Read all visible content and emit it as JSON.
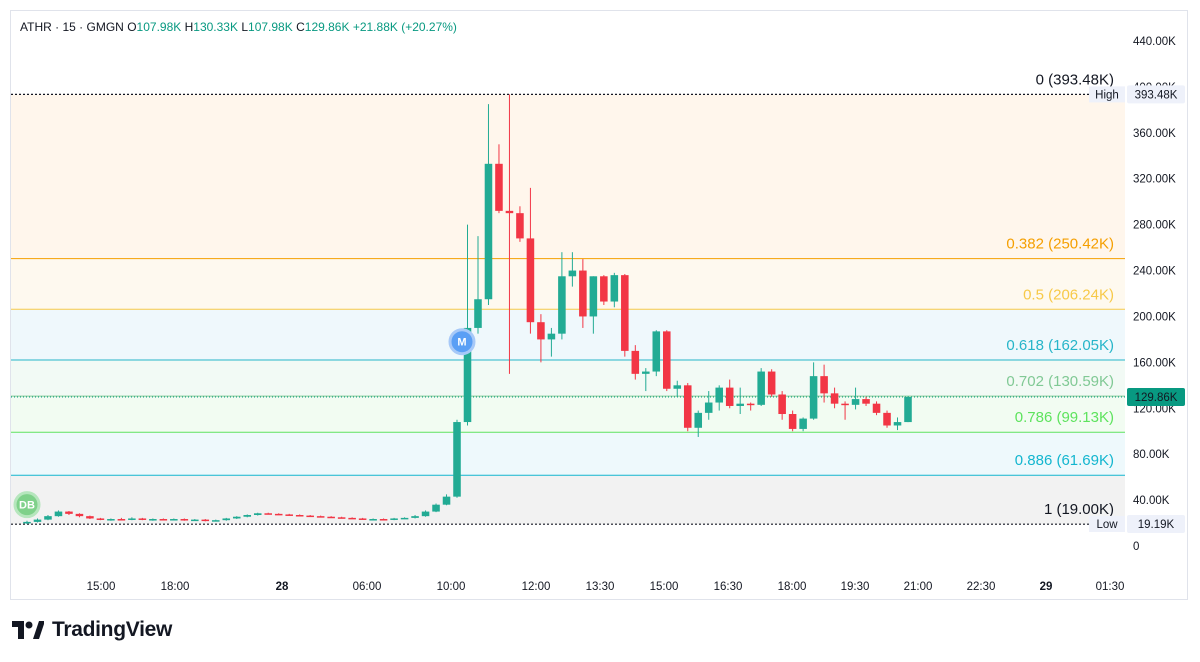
{
  "header": {
    "symbol": "ATHR",
    "sep1": "·",
    "interval": "15",
    "sep2": "·",
    "exchange": "GMGN",
    "open_label": "O",
    "open": "107.98K",
    "high_label": "H",
    "high": "130.33K",
    "low_label": "L",
    "low": "107.98K",
    "close_label": "C",
    "close": "129.86K",
    "change": "+21.88K (+20.27%)"
  },
  "brand": {
    "name": "TradingView"
  },
  "colors": {
    "up": "#22ab94",
    "down": "#f23645",
    "accent": "#2962ff"
  },
  "chart_data": {
    "type": "candlestick",
    "y_axis": {
      "ticks": [
        0,
        40000,
        80000,
        120000,
        160000,
        200000,
        240000,
        280000,
        320000,
        360000,
        400000,
        440000
      ],
      "tick_labels": [
        "0",
        "40.00K",
        "80.00K",
        "120.00K",
        "160.00K",
        "200.00K",
        "240.00K",
        "280.00K",
        "320.00K",
        "360.00K",
        "400.00K",
        "440.00K"
      ]
    },
    "x_axis": {
      "tick_labels": [
        "15:00",
        "18:00",
        "28",
        "06:00",
        "10:00",
        "12:00",
        "13:30",
        "15:00",
        "16:30",
        "18:00",
        "19:30",
        "21:00",
        "22:30",
        "29",
        "01:30"
      ]
    },
    "fibonacci": [
      {
        "level": "0",
        "price": 393480,
        "label": "0 (393.48K)",
        "color": "#131722"
      },
      {
        "level": "0.382",
        "price": 250420,
        "label": "0.382 (250.42K)",
        "color": "#f59f00"
      },
      {
        "level": "0.5",
        "price": 206240,
        "label": "0.5 (206.24K)",
        "color": "#f7c948"
      },
      {
        "level": "0.618",
        "price": 162050,
        "label": "0.618 (162.05K)",
        "color": "#26b5c9"
      },
      {
        "level": "0.702",
        "price": 130590,
        "label": "0.702 (130.59K)",
        "color": "#81c995"
      },
      {
        "level": "0.786",
        "price": 99130,
        "label": "0.786 (99.13K)",
        "color": "#5ee35e"
      },
      {
        "level": "0.886",
        "price": 61690,
        "label": "0.886 (61.69K)",
        "color": "#13b6cf"
      },
      {
        "level": "1",
        "price": 19000,
        "label": "1 (19.00K)",
        "color": "#131722"
      }
    ],
    "price_tags": [
      {
        "name": "High",
        "price": 393480,
        "value_label": "393.48K"
      },
      {
        "name": "Low",
        "price": 19190,
        "value_label": "19.19K"
      },
      {
        "name": "",
        "price": 129860,
        "value_label": "129.86K"
      }
    ],
    "markers": [
      {
        "label": "DB",
        "price": 36000
      },
      {
        "label": "M",
        "price": 178000
      }
    ],
    "candles": [
      {
        "o": 20000,
        "h": 22000,
        "l": 19190,
        "c": 21000
      },
      {
        "o": 21000,
        "h": 24000,
        "l": 20500,
        "c": 23000
      },
      {
        "o": 23000,
        "h": 27000,
        "l": 22500,
        "c": 26000
      },
      {
        "o": 26000,
        "h": 31000,
        "l": 25500,
        "c": 30000
      },
      {
        "o": 30000,
        "h": 30500,
        "l": 27000,
        "c": 28000
      },
      {
        "o": 28000,
        "h": 28500,
        "l": 25000,
        "c": 26000
      },
      {
        "o": 26000,
        "h": 26500,
        "l": 23500,
        "c": 24000
      },
      {
        "o": 24000,
        "h": 24500,
        "l": 22500,
        "c": 23000
      },
      {
        "o": 23000,
        "h": 24000,
        "l": 22000,
        "c": 23500
      },
      {
        "o": 23500,
        "h": 24500,
        "l": 22500,
        "c": 23000
      },
      {
        "o": 23000,
        "h": 25000,
        "l": 22500,
        "c": 24000
      },
      {
        "o": 24000,
        "h": 24500,
        "l": 22500,
        "c": 23000
      },
      {
        "o": 23000,
        "h": 24000,
        "l": 22000,
        "c": 23500
      },
      {
        "o": 23500,
        "h": 24000,
        "l": 22500,
        "c": 23000
      },
      {
        "o": 23000,
        "h": 24000,
        "l": 22500,
        "c": 23500
      },
      {
        "o": 23500,
        "h": 24000,
        "l": 22000,
        "c": 22500
      },
      {
        "o": 22500,
        "h": 23500,
        "l": 22000,
        "c": 23000
      },
      {
        "o": 23000,
        "h": 23500,
        "l": 21500,
        "c": 22000
      },
      {
        "o": 22000,
        "h": 23000,
        "l": 21500,
        "c": 22500
      },
      {
        "o": 22500,
        "h": 24500,
        "l": 22000,
        "c": 24000
      },
      {
        "o": 24000,
        "h": 26000,
        "l": 23500,
        "c": 25500
      },
      {
        "o": 25500,
        "h": 27500,
        "l": 25000,
        "c": 27000
      },
      {
        "o": 27000,
        "h": 29000,
        "l": 26500,
        "c": 28500
      },
      {
        "o": 28500,
        "h": 29000,
        "l": 27500,
        "c": 28000
      },
      {
        "o": 28000,
        "h": 28500,
        "l": 27000,
        "c": 27500
      },
      {
        "o": 27500,
        "h": 28000,
        "l": 26500,
        "c": 27000
      },
      {
        "o": 27000,
        "h": 27500,
        "l": 26000,
        "c": 26500
      },
      {
        "o": 26500,
        "h": 27000,
        "l": 25500,
        "c": 26000
      },
      {
        "o": 26000,
        "h": 26500,
        "l": 25000,
        "c": 25500
      },
      {
        "o": 25500,
        "h": 26000,
        "l": 24500,
        "c": 25000
      },
      {
        "o": 25000,
        "h": 25500,
        "l": 24000,
        "c": 24500
      },
      {
        "o": 24500,
        "h": 25000,
        "l": 23500,
        "c": 24000
      },
      {
        "o": 24000,
        "h": 24500,
        "l": 23000,
        "c": 23500
      },
      {
        "o": 23500,
        "h": 24000,
        "l": 23000,
        "c": 23500
      },
      {
        "o": 23500,
        "h": 24000,
        "l": 22500,
        "c": 23000
      },
      {
        "o": 23000,
        "h": 24500,
        "l": 22500,
        "c": 24000
      },
      {
        "o": 24000,
        "h": 25000,
        "l": 23500,
        "c": 24500
      },
      {
        "o": 24500,
        "h": 27000,
        "l": 24000,
        "c": 26000
      },
      {
        "o": 26000,
        "h": 31000,
        "l": 25500,
        "c": 30000
      },
      {
        "o": 30000,
        "h": 37000,
        "l": 29500,
        "c": 36000
      },
      {
        "o": 36000,
        "h": 45000,
        "l": 35500,
        "c": 43000
      },
      {
        "o": 43000,
        "h": 110000,
        "l": 42000,
        "c": 108000
      },
      {
        "o": 108000,
        "h": 280000,
        "l": 105000,
        "c": 190000
      },
      {
        "o": 190000,
        "h": 270000,
        "l": 185000,
        "c": 215000
      },
      {
        "o": 215000,
        "h": 385000,
        "l": 210000,
        "c": 333000
      },
      {
        "o": 333000,
        "h": 350000,
        "l": 290000,
        "c": 292000
      },
      {
        "o": 292000,
        "h": 393480,
        "l": 150000,
        "c": 290000
      },
      {
        "o": 290000,
        "h": 296000,
        "l": 265000,
        "c": 268000
      },
      {
        "o": 268000,
        "h": 312000,
        "l": 185000,
        "c": 195000
      },
      {
        "o": 195000,
        "h": 202000,
        "l": 160000,
        "c": 180000
      },
      {
        "o": 180000,
        "h": 190000,
        "l": 165000,
        "c": 185000
      },
      {
        "o": 185000,
        "h": 256000,
        "l": 180000,
        "c": 235000
      },
      {
        "o": 235000,
        "h": 256000,
        "l": 226000,
        "c": 240000
      },
      {
        "o": 240000,
        "h": 250000,
        "l": 190000,
        "c": 200000
      },
      {
        "o": 200000,
        "h": 235000,
        "l": 185000,
        "c": 235000
      },
      {
        "o": 235000,
        "h": 236000,
        "l": 210000,
        "c": 213000
      },
      {
        "o": 213000,
        "h": 238000,
        "l": 208000,
        "c": 236000
      },
      {
        "o": 236000,
        "h": 237000,
        "l": 165000,
        "c": 170000
      },
      {
        "o": 170000,
        "h": 175000,
        "l": 145000,
        "c": 150000
      },
      {
        "o": 150000,
        "h": 155000,
        "l": 135000,
        "c": 152000
      },
      {
        "o": 152000,
        "h": 188000,
        "l": 148000,
        "c": 187000
      },
      {
        "o": 187000,
        "h": 188000,
        "l": 135000,
        "c": 137000
      },
      {
        "o": 137000,
        "h": 144000,
        "l": 130000,
        "c": 140000
      },
      {
        "o": 140000,
        "h": 142000,
        "l": 100000,
        "c": 103000
      },
      {
        "o": 103000,
        "h": 118000,
        "l": 95000,
        "c": 116000
      },
      {
        "o": 116000,
        "h": 135000,
        "l": 110000,
        "c": 125000
      },
      {
        "o": 125000,
        "h": 140000,
        "l": 118000,
        "c": 138000
      },
      {
        "o": 138000,
        "h": 145000,
        "l": 120000,
        "c": 122000
      },
      {
        "o": 122000,
        "h": 138000,
        "l": 115000,
        "c": 124000
      },
      {
        "o": 124000,
        "h": 125000,
        "l": 118000,
        "c": 123000
      },
      {
        "o": 123000,
        "h": 155000,
        "l": 122000,
        "c": 152000
      },
      {
        "o": 152000,
        "h": 154000,
        "l": 130000,
        "c": 132000
      },
      {
        "o": 132000,
        "h": 135000,
        "l": 110000,
        "c": 115000
      },
      {
        "o": 115000,
        "h": 118000,
        "l": 100000,
        "c": 102000
      },
      {
        "o": 102000,
        "h": 112000,
        "l": 100000,
        "c": 111000
      },
      {
        "o": 111000,
        "h": 160000,
        "l": 110000,
        "c": 148000
      },
      {
        "o": 148000,
        "h": 158000,
        "l": 125000,
        "c": 133000
      },
      {
        "o": 133000,
        "h": 138000,
        "l": 120000,
        "c": 124000
      },
      {
        "o": 124000,
        "h": 126000,
        "l": 110000,
        "c": 123000
      },
      {
        "o": 123000,
        "h": 138000,
        "l": 119000,
        "c": 128000
      },
      {
        "o": 128000,
        "h": 130000,
        "l": 122000,
        "c": 124000
      },
      {
        "o": 124000,
        "h": 126000,
        "l": 114000,
        "c": 116000
      },
      {
        "o": 116000,
        "h": 118000,
        "l": 103000,
        "c": 105000
      },
      {
        "o": 105000,
        "h": 112000,
        "l": 101000,
        "c": 107980
      },
      {
        "o": 107980,
        "h": 130330,
        "l": 107980,
        "c": 129860
      }
    ]
  }
}
